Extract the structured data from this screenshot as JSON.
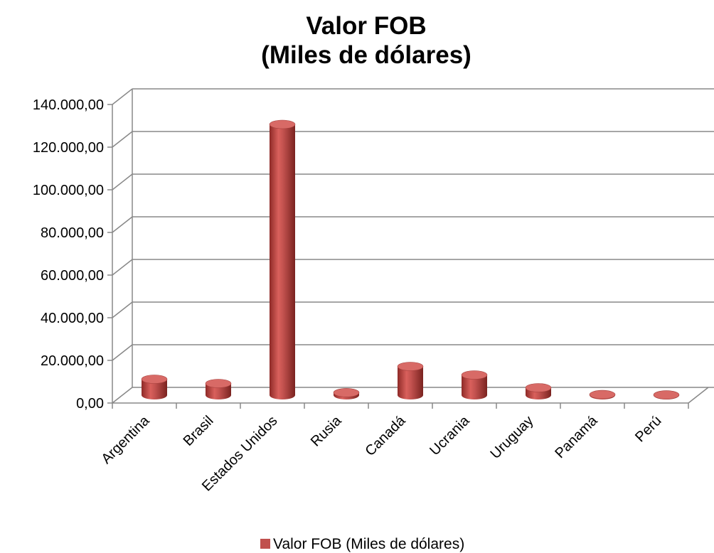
{
  "chart_data": {
    "type": "bar",
    "title": "Valor FOB",
    "subtitle": "(Miles de dólares)",
    "categories": [
      "Argentina",
      "Brasil",
      "Estados Unidos",
      "Rusia",
      "Canadá",
      "Ucrania",
      "Uruguay",
      "Panamá",
      "Perú"
    ],
    "series": [
      {
        "name": "Valor FOB (Miles de dólares)",
        "color": "#C0504D",
        "values": [
          7500,
          5500,
          127000,
          1200,
          13500,
          9500,
          3500,
          300,
          150
        ]
      }
    ],
    "y_ticks": [
      "0,00",
      "20.000,00",
      "40.000,00",
      "60.000,00",
      "80.000,00",
      "100.000,00",
      "120.000,00",
      "140.000,00"
    ],
    "ylim": [
      0,
      140000
    ],
    "grid": true,
    "legend_position": "bottom",
    "three_d": true
  }
}
